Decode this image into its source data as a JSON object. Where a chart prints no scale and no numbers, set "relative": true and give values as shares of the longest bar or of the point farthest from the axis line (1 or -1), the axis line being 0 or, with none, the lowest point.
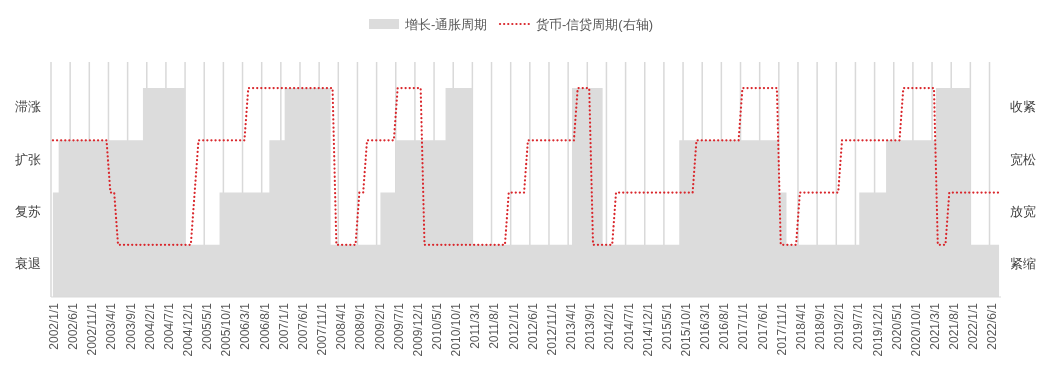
{
  "chart_data": {
    "type": "area",
    "relative": true,
    "categories": [
      "2002/1/1",
      null,
      null,
      null,
      null,
      "2002/6/1",
      null,
      null,
      null,
      null,
      "2002/11/1",
      null,
      null,
      null,
      null,
      "2003/4/1",
      null,
      null,
      null,
      null,
      "2003/9/1",
      null,
      null,
      null,
      null,
      "2004/2/1",
      null,
      null,
      null,
      null,
      "2004/7/1",
      null,
      null,
      null,
      null,
      "2004/12/1",
      null,
      null,
      null,
      null,
      "2005/5/1",
      null,
      null,
      null,
      null,
      "2005/10/1",
      null,
      null,
      null,
      null,
      "2006/3/1",
      null,
      null,
      null,
      null,
      "2006/8/1",
      null,
      null,
      null,
      null,
      "2007/1/1",
      null,
      null,
      null,
      null,
      "2007/6/1",
      null,
      null,
      null,
      null,
      "2007/11/1",
      null,
      null,
      null,
      null,
      "2008/4/1",
      null,
      null,
      null,
      null,
      "2008/9/1",
      null,
      null,
      null,
      null,
      "2009/2/1",
      null,
      null,
      null,
      null,
      "2009/7/1",
      null,
      null,
      null,
      null,
      "2009/12/1",
      null,
      null,
      null,
      null,
      "2010/5/1",
      null,
      null,
      null,
      null,
      "2010/10/1",
      null,
      null,
      null,
      null,
      "2011/3/1",
      null,
      null,
      null,
      null,
      "2011/8/1",
      null,
      null,
      null,
      null,
      "2012/1/1",
      null,
      null,
      null,
      null,
      "2012/6/1",
      null,
      null,
      null,
      null,
      "2012/11/1",
      null,
      null,
      null,
      null,
      "2013/4/1",
      null,
      null,
      null,
      null,
      "2013/9/1",
      null,
      null,
      null,
      null,
      "2014/2/1",
      null,
      null,
      null,
      null,
      "2014/7/1",
      null,
      null,
      null,
      null,
      "2014/12/1",
      null,
      null,
      null,
      null,
      "2015/5/1",
      null,
      null,
      null,
      null,
      "2015/10/1",
      null,
      null,
      null,
      null,
      "2016/3/1",
      null,
      null,
      null,
      null,
      "2016/8/1",
      null,
      null,
      null,
      null,
      "2017/1/1",
      null,
      null,
      null,
      null,
      "2017/6/1",
      null,
      null,
      null,
      null,
      "2017/11/1",
      null,
      null,
      null,
      null,
      "2018/4/1",
      null,
      null,
      null,
      null,
      "2018/9/1",
      null,
      null,
      null,
      null,
      "2019/2/1",
      null,
      null,
      null,
      null,
      "2019/7/1",
      null,
      null,
      null,
      null,
      "2019/12/1",
      null,
      null,
      null,
      null,
      "2020/5/1",
      null,
      null,
      null,
      null,
      "2020/10/1",
      null,
      null,
      null,
      null,
      "2021/3/1",
      null,
      null,
      null,
      null,
      "2021/8/1",
      null,
      null,
      null,
      null,
      "2022/1/1",
      null,
      null,
      null,
      null,
      "2022/6/1",
      null,
      null
    ],
    "series": [
      {
        "name": "增长-通胀周期",
        "color": "#dcdcdc",
        "values": [
          0.5,
          0.5,
          0.75,
          0.75,
          0.75,
          0.75,
          0.75,
          0.75,
          0.75,
          0.75,
          0.75,
          0.75,
          0.75,
          0.75,
          0.75,
          0.75,
          0.75,
          0.75,
          0.75,
          0.75,
          0.75,
          0.75,
          0.75,
          0.75,
          1,
          1,
          1,
          1,
          1,
          1,
          1,
          1,
          1,
          1,
          1,
          0.25,
          0.25,
          0.25,
          0.25,
          0.25,
          0.25,
          0.25,
          0.25,
          0.25,
          0.5,
          0.5,
          0.5,
          0.5,
          0.5,
          0.5,
          0.5,
          0.5,
          0.5,
          0.5,
          0.5,
          0.5,
          0.5,
          0.75,
          0.75,
          0.75,
          0.75,
          1,
          1,
          1,
          1,
          1,
          1,
          1,
          1,
          1,
          1,
          1,
          1,
          0.25,
          0.25,
          0.25,
          0.25,
          0.25,
          0.25,
          0.25,
          0.25,
          0.25,
          0.25,
          0.25,
          0.25,
          0.25,
          0.5,
          0.5,
          0.5,
          0.5,
          0.75,
          0.75,
          0.75,
          0.75,
          0.75,
          0.75,
          0.75,
          0.75,
          0.75,
          0.75,
          0.75,
          0.75,
          0.75,
          1,
          1,
          1,
          1,
          1,
          1,
          1,
          0.25,
          0.25,
          0.25,
          0.25,
          0.25,
          0.25,
          0.25,
          0.25,
          0.25,
          0.25,
          0.25,
          0.25,
          0.25,
          0.25,
          0.25,
          0.25,
          0.25,
          0.25,
          0.25,
          0.25,
          0.25,
          0.25,
          0.25,
          0.25,
          0.25,
          0.25,
          1,
          1,
          1,
          1,
          1,
          1,
          1,
          1,
          0.25,
          0.25,
          0.25,
          0.25,
          0.25,
          0.25,
          0.25,
          0.25,
          0.25,
          0.25,
          0.25,
          0.25,
          0.25,
          0.25,
          0.25,
          0.25,
          0.25,
          0.25,
          0.25,
          0.25,
          0.75,
          0.75,
          0.75,
          0.75,
          0.75,
          0.75,
          0.75,
          0.75,
          0.75,
          0.75,
          0.75,
          0.75,
          0.75,
          0.75,
          0.75,
          0.75,
          0.75,
          0.75,
          0.75,
          0.75,
          0.75,
          0.75,
          0.75,
          0.75,
          0.75,
          0.75,
          0.5,
          0.5,
          0.25,
          0.25,
          0.25,
          0.25,
          0.25,
          0.25,
          0.25,
          0.25,
          0.25,
          0.25,
          0.25,
          0.25,
          0.25,
          0.25,
          0.25,
          0.25,
          0.25,
          0.25,
          0.25,
          0.5,
          0.5,
          0.5,
          0.5,
          0.5,
          0.5,
          0.5,
          0.75,
          0.75,
          0.75,
          0.75,
          0.75,
          0.75,
          0.75,
          0.75,
          0.75,
          0.75,
          0.75,
          0.75,
          0.75,
          1,
          1,
          1,
          1,
          1,
          1,
          1,
          1,
          1,
          0.25,
          0.25,
          0.25,
          0.25,
          0.25,
          0.25,
          0.25,
          0.25
        ]
      },
      {
        "name": "货币-信贷周期(右轴)",
        "type": "line",
        "color": "#d9262b",
        "line_style": "dotted",
        "values": [
          0.75,
          0.75,
          0.75,
          0.75,
          0.75,
          0.75,
          0.75,
          0.75,
          0.75,
          0.75,
          0.75,
          0.75,
          0.75,
          0.75,
          0.75,
          0.5,
          0.5,
          0.25,
          0.25,
          0.25,
          0.25,
          0.25,
          0.25,
          0.25,
          0.25,
          0.25,
          0.25,
          0.25,
          0.25,
          0.25,
          0.25,
          0.25,
          0.25,
          0.25,
          0.25,
          0.25,
          0.25,
          0.5,
          0.75,
          0.75,
          0.75,
          0.75,
          0.75,
          0.75,
          0.75,
          0.75,
          0.75,
          0.75,
          0.75,
          0.75,
          0.75,
          1,
          1,
          1,
          1,
          1,
          1,
          1,
          1,
          1,
          1,
          1,
          1,
          1,
          1,
          1,
          1,
          1,
          1,
          1,
          1,
          1,
          1,
          1,
          0.25,
          0.25,
          0.25,
          0.25,
          0.25,
          0.25,
          0.5,
          0.5,
          0.75,
          0.75,
          0.75,
          0.75,
          0.75,
          0.75,
          0.75,
          0.75,
          1,
          1,
          1,
          1,
          1,
          1,
          1,
          0.25,
          0.25,
          0.25,
          0.25,
          0.25,
          0.25,
          0.25,
          0.25,
          0.25,
          0.25,
          0.25,
          0.25,
          0.25,
          0.25,
          0.25,
          0.25,
          0.25,
          0.25,
          0.25,
          0.25,
          0.25,
          0.25,
          0.5,
          0.5,
          0.5,
          0.5,
          0.5,
          0.75,
          0.75,
          0.75,
          0.75,
          0.75,
          0.75,
          0.75,
          0.75,
          0.75,
          0.75,
          0.75,
          0.75,
          0.75,
          1,
          1,
          1,
          1,
          0.25,
          0.25,
          0.25,
          0.25,
          0.25,
          0.25,
          0.5,
          0.5,
          0.5,
          0.5,
          0.5,
          0.5,
          0.5,
          0.5,
          0.5,
          0.5,
          0.5,
          0.5,
          0.5,
          0.5,
          0.5,
          0.5,
          0.5,
          0.5,
          0.5,
          0.5,
          0.5,
          0.75,
          0.75,
          0.75,
          0.75,
          0.75,
          0.75,
          0.75,
          0.75,
          0.75,
          0.75,
          0.75,
          0.75,
          1,
          1,
          1,
          1,
          1,
          1,
          1,
          1,
          1,
          1,
          0.25,
          0.25,
          0.25,
          0.25,
          0.25,
          0.5,
          0.5,
          0.5,
          0.5,
          0.5,
          0.5,
          0.5,
          0.5,
          0.5,
          0.5,
          0.5,
          0.75,
          0.75,
          0.75,
          0.75,
          0.75,
          0.75,
          0.75,
          0.75,
          0.75,
          0.75,
          0.75,
          0.75,
          0.75,
          0.75,
          0.75,
          0.75,
          1,
          1,
          1,
          1,
          1,
          1,
          1,
          1,
          1,
          0.25,
          0.25,
          0.25,
          0.5,
          0.5,
          0.5,
          0.5,
          0.5,
          0.5,
          0.5,
          0.5,
          0.5,
          0.5,
          0.5,
          0.5,
          0.5,
          0.5
        ]
      }
    ],
    "annotations": [
      "衰退",
      "复苏",
      "扩张",
      "滞涨",
      "紧缩",
      "放宽",
      "宽松",
      "收紧"
    ],
    "grid": "x",
    "legend": "top"
  }
}
